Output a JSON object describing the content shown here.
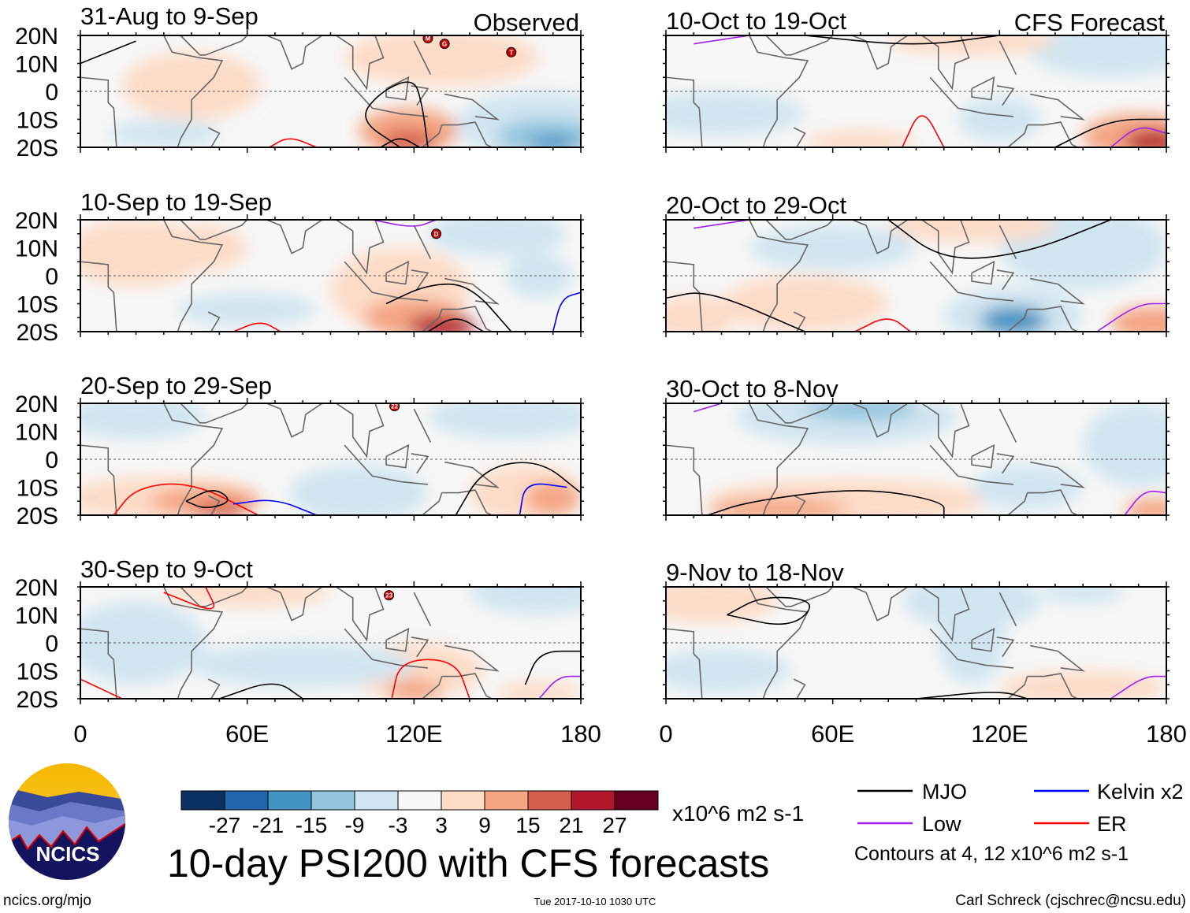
{
  "chart_data": {
    "type": "heatmap",
    "title": "10-day PSI200 with CFS forecasts",
    "variable": "200 hPa streamfunction anomaly",
    "units": "x10^6 m2 s-1",
    "column_headers": [
      "Observed",
      "CFS Forecast"
    ],
    "lat_ticks": [
      "20N",
      "10N",
      "0",
      "10S",
      "20S"
    ],
    "lon_ticks": [
      "0",
      "60E",
      "120E",
      "180"
    ],
    "xlim": [
      0,
      180
    ],
    "ylim": [
      -20,
      20
    ],
    "panels": [
      {
        "title": "31-Aug to 9-Sep",
        "column": "Observed",
        "storms": [
          "M",
          "G",
          "T"
        ]
      },
      {
        "title": "10-Sep to 19-Sep",
        "column": "Observed",
        "storms": [
          "D"
        ]
      },
      {
        "title": "20-Sep to 29-Sep",
        "column": "Observed",
        "storms": [
          "22"
        ]
      },
      {
        "title": "30-Sep to 9-Oct",
        "column": "Observed",
        "storms": [
          "23"
        ]
      },
      {
        "title": "10-Oct to 19-Oct",
        "column": "CFS Forecast",
        "storms": []
      },
      {
        "title": "20-Oct to 29-Oct",
        "column": "CFS Forecast",
        "storms": []
      },
      {
        "title": "30-Oct to 8-Nov",
        "column": "CFS Forecast",
        "storms": []
      },
      {
        "title": "9-Nov to 18-Nov",
        "column": "CFS Forecast",
        "storms": []
      }
    ],
    "colorbar": {
      "labels": [
        "-27",
        "-21",
        "-15",
        "-9",
        "-3",
        "3",
        "9",
        "15",
        "21",
        "27"
      ],
      "colors": [
        "#0b3162",
        "#2166ac",
        "#4393c3",
        "#92c5de",
        "#d1e5f0",
        "#f7f7f7",
        "#fddbc7",
        "#f4a582",
        "#d6604d",
        "#b2182b",
        "#67001f"
      ],
      "units": "x10^6 m2 s-1"
    },
    "legend": [
      {
        "label": "MJO",
        "color": "#000000"
      },
      {
        "label": "Kelvin x2",
        "color": "#0000ff"
      },
      {
        "label": "Low",
        "color": "#a020f0"
      },
      {
        "label": "ER",
        "color": "#ff0000"
      }
    ],
    "contour_note": "Contours at 4, 12 x10^6 m2 s-1"
  },
  "footer": {
    "logo_text": "NCICS",
    "site": "ncics.org/mjo",
    "timestamp": "Tue 2017-10-10 1030 UTC",
    "author": "Carl Schreck (cjschrec@ncsu.edu)"
  }
}
